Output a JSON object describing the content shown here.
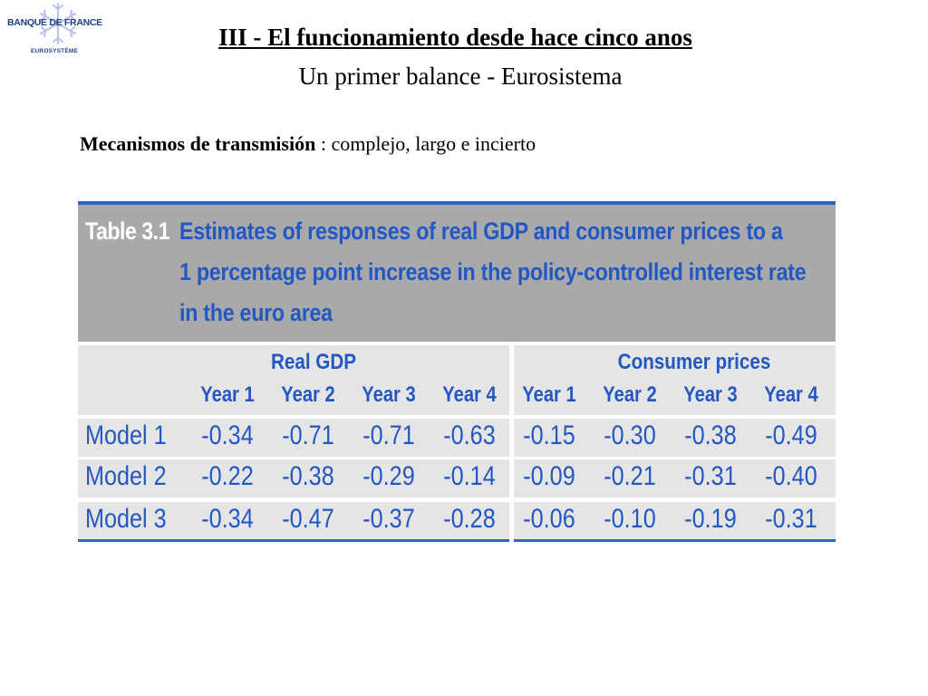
{
  "logo": {
    "brand": "BANQUE DE FRANCE",
    "subtitle": "EUROSYSTÈME",
    "icon": "snowflake-logo-icon"
  },
  "slide": {
    "title": "III - El funcionamiento desde hace cinco anos",
    "subtitle": "Un primer balance - Eurosistema",
    "lead_bold": "Mecanismos de transmisión",
    "lead_rest": " : complejo, largo e incierto"
  },
  "table": {
    "label": "Table 3.1",
    "caption_lines": [
      "Estimates of responses of real GDP and consumer prices to a",
      "1 percentage point increase in the policy-controlled interest rate",
      "in the euro area"
    ],
    "groups": [
      "Real GDP",
      "Consumer prices"
    ],
    "years": [
      "Year 1",
      "Year 2",
      "Year 3",
      "Year 4",
      "Year 1",
      "Year 2",
      "Year 3",
      "Year 4"
    ],
    "rows": [
      {
        "label": "Model 1",
        "values": [
          "-0.34",
          "-0.71",
          "-0.71",
          "-0.63",
          "-0.15",
          "-0.30",
          "-0.38",
          "-0.49"
        ]
      },
      {
        "label": "Model 2",
        "values": [
          "-0.22",
          "-0.38",
          "-0.29",
          "-0.14",
          "-0.09",
          "-0.21",
          "-0.31",
          "-0.40"
        ]
      },
      {
        "label": "Model 3",
        "values": [
          "-0.34",
          "-0.47",
          "-0.37",
          "-0.28",
          "-0.06",
          "-0.10",
          "-0.19",
          "-0.31"
        ]
      }
    ],
    "colors": {
      "caption_background": "#a9a9a9",
      "cell_background": "#e5e5e5",
      "text_blue": "#2357c2",
      "rule_blue": "#2f63c8"
    }
  }
}
